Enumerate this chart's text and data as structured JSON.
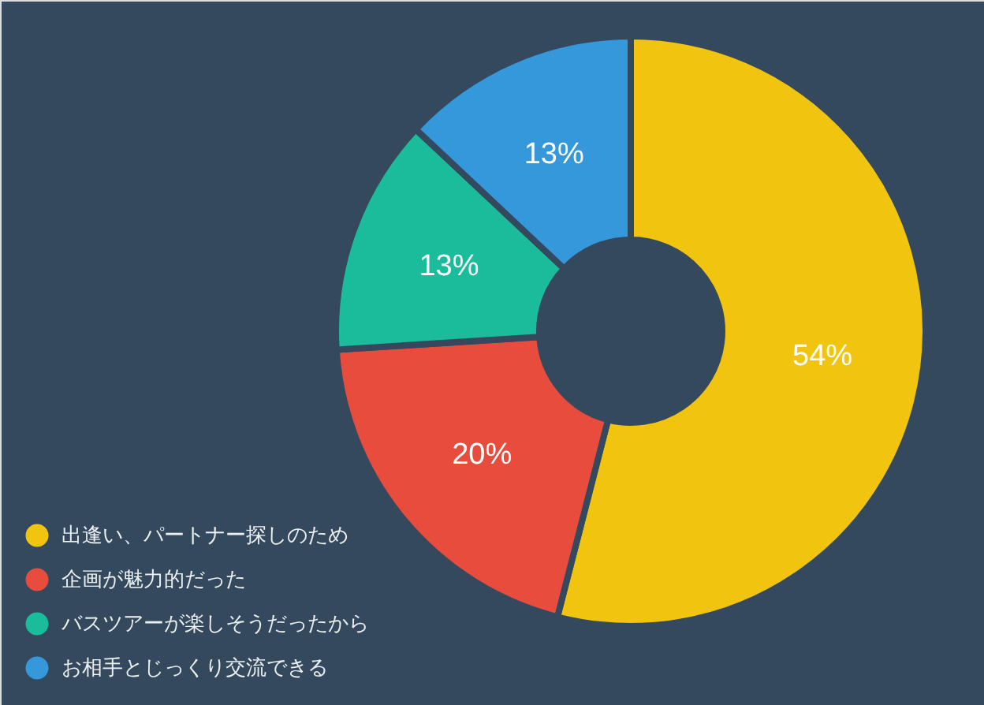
{
  "chart_data": {
    "type": "donut",
    "categories": [
      "出逢い、パートナー探しのため",
      "企画が魅力的だった",
      "バスツアーが楽しそうだったから",
      "お相手とじっくり交流できる"
    ],
    "values": [
      54,
      20,
      13,
      13
    ],
    "colors": [
      "#f1c40f",
      "#e74c3c",
      "#1abc9c",
      "#3498db"
    ],
    "value_labels": [
      "54%",
      "20%",
      "13%",
      "13%"
    ],
    "legend": "bottom left"
  }
}
